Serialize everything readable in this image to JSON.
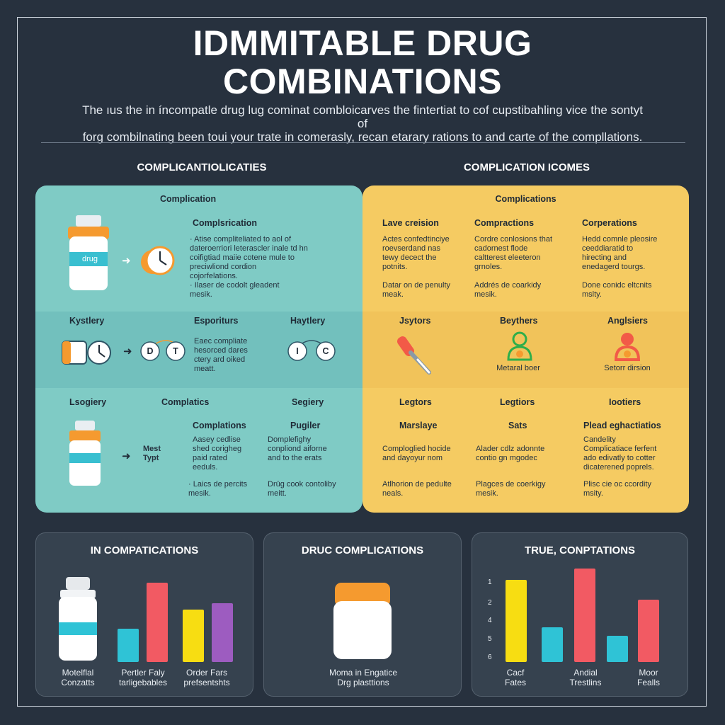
{
  "header": {
    "title_line1": "IDMMITABLE DRUG",
    "title_line2": "COMBINATIONS",
    "subtitle_line1": "The ıus the in íncompatle drug lug cominat combloicarves the fintertiat to cof cupstibahling vice the sontyt of",
    "subtitle_line2": "forg combilnating been toui your trate in comerasly, recan etarary rations to and carte of the compllations."
  },
  "sections": {
    "left_heading": "COMPLICANTIOLICATIES",
    "right_heading": "COMPLICATION ICOMES"
  },
  "teal_panel": {
    "row1": {
      "top_label": "Complication",
      "heading": "Complsrication",
      "bottle_label": "drug",
      "bullet1_l1": "· Atise compliteliated to aol of",
      "bullet1_l2": "  dateroerriori leterascler inale td hn",
      "bullet1_l3": "  coifigtiad maiie cotene mule to",
      "bullet1_l4": "  preciwliond cordion",
      "bullet1_l5": "  cojorfelations.",
      "bullet2_l1": "· Ilaser de codolt gleadent",
      "bullet2_l2": "  mesik."
    },
    "row2": {
      "label_left": "Kystlery",
      "label_mid": "Esporiturs",
      "label_right": "Haytlery",
      "circle1": "D",
      "circle2": "T",
      "circle3": "I",
      "circle4": "C",
      "text_l1": "Eaec compliate",
      "text_l2": "hesorced dares",
      "text_l3": "ctery ard oiked",
      "text_l4": "meatt."
    },
    "row3": {
      "label_left": "Lsogiery",
      "label_mid": "Complatics",
      "label_right": "Segiery",
      "col1_heading": "Complations",
      "col2_heading": "Pugiler",
      "side_l1": "Mest",
      "side_l2": "Typt",
      "col1_l1": "Aasey cedlise",
      "col1_l2": "shed corigheg",
      "col1_l3": "paid rated",
      "col1_l4": "eeduls.",
      "col2_l1": "Domplefighy",
      "col2_l2": "conpliond aiforne",
      "col2_l3": "and to the erats",
      "col1_b1": "· Laics de percits",
      "col1_b2": "  mesik.",
      "col2_b1": "Drüg cook contoliby",
      "col2_b2": "meitt."
    }
  },
  "yellow_panel": {
    "top_label": "Complications",
    "row1": {
      "h1": "Lave creision",
      "h2": "Compractions",
      "h3": "Corperations",
      "c1_l1": "Actes confedtinciye",
      "c1_l2": "roevserdand nas",
      "c1_l3": "tewy decect the",
      "c1_l4": "potnits.",
      "c2_l1": "Cordre conlosions that",
      "c2_l2": "cadornest flode",
      "c2_l3": "caltterest eleeteron",
      "c2_l4": "grnoles.",
      "c3_l1": "Hedd comnle pleosire",
      "c3_l2": "ceeddiaratid to",
      "c3_l3": "hirecting and",
      "c3_l4": "enedagerd tourgs.",
      "c1_b1": "Datar on de penulty",
      "c1_b2": "meak.",
      "c2_b1": "Addrés de coarkidy",
      "c2_b2": "mesik.",
      "c3_b1": "Done conidc eltcnits",
      "c3_b2": "mslty."
    },
    "row2": {
      "h1": "Jsytors",
      "h2": "Beythers",
      "h3": "Anglsiers",
      "cap2": "Metaral boer",
      "cap3": "Setorr dirsion"
    },
    "row3": {
      "l1": "Legtors",
      "l2": "Legtiors",
      "l3": "Iootiers",
      "h1": "Marslaye",
      "h2": "Sats",
      "h3": "Plead eghactiatios",
      "c1_l1": "Comploglied hocide",
      "c1_l2": "and dayoyur nom",
      "c2_l1": "Alader cdlz adonnte",
      "c2_l2": "contio gn mgodec",
      "c3_l1": "Candelity",
      "c3_l2": "Complicatiace ferfent",
      "c3_l3": "ado edivatly to cotter",
      "c3_l4": "dicaterened poprels.",
      "c1_b1": "Atlhorion de pedulte",
      "c1_b2": "neals.",
      "c2_b1": "Plagces de coerkigy",
      "c2_b2": "mesik.",
      "c3_b1": "Plisc cie oc ccordity",
      "c3_b2": "msity."
    }
  },
  "cards": {
    "card1": {
      "title": "IN COMPATICATIONS",
      "cap1_l1": "Motelflal",
      "cap1_l2": "Conzatts",
      "cap2_l1": "Pertler Faly",
      "cap2_l2": "tarligebables",
      "cap3_l1": "Order Fars",
      "cap3_l2": "prefsentshts"
    },
    "card2": {
      "title": "DRUC COMPLICATIONS",
      "cap_l1": "Moma in Engatice",
      "cap_l2": "Drg plasttions"
    },
    "card3": {
      "title": "TRUE, CONPTATIONS",
      "ticks": [
        "1",
        "2",
        "4",
        "5",
        "6"
      ],
      "cap1_l1": "Cacf",
      "cap1_l2": "Fates",
      "cap2_l1": "Andial",
      "cap2_l2": "Trestlins",
      "cap3_l1": "Moor",
      "cap3_l2": "Fealls"
    }
  },
  "colors": {
    "background": "#27313e",
    "teal": "#7fcbc5",
    "yellow": "#f5cb62",
    "orange": "#f59a2f",
    "red": "#f25a63",
    "cyan": "#2fc3d6",
    "bar_yellow": "#f7dd12",
    "purple": "#9d5cc0"
  },
  "bar_levels": {
    "card1": [
      0.42,
      1.0,
      0.66,
      0.74
    ],
    "card3": [
      0.88,
      0.37,
      1.0,
      0.28,
      0.67
    ]
  }
}
